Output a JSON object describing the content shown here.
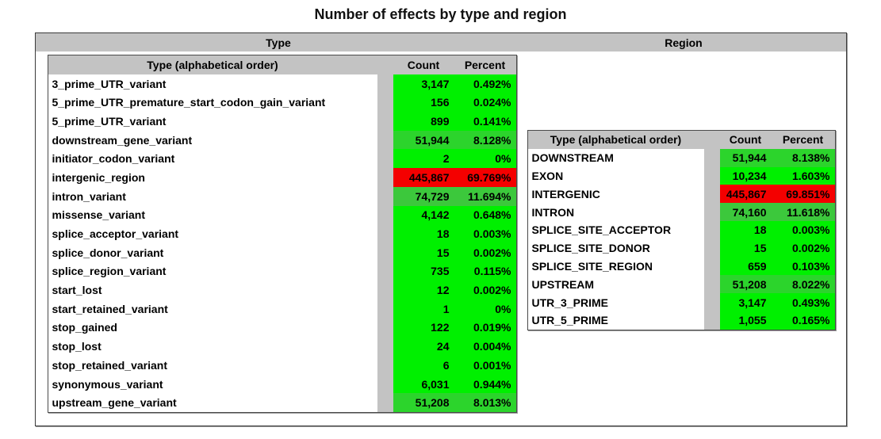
{
  "title": "Number of effects by type and region",
  "colors": {
    "header_gray": "#c3c3c3",
    "bright_green": "#00f000",
    "mid_green": "#2cd42c",
    "deep_green": "#3cc83c",
    "red": "#f40000"
  },
  "panels": {
    "type": {
      "label": "Type",
      "table": {
        "headers": [
          "Type (alphabetical order)",
          "Count",
          "Percent"
        ],
        "rows": [
          {
            "name": "3_prime_UTR_variant",
            "count": "3,147",
            "percent": "0.492%",
            "color": "#00f000"
          },
          {
            "name": "5_prime_UTR_premature_start_codon_gain_variant",
            "count": "156",
            "percent": "0.024%",
            "color": "#00f000"
          },
          {
            "name": "5_prime_UTR_variant",
            "count": "899",
            "percent": "0.141%",
            "color": "#00f000"
          },
          {
            "name": "downstream_gene_variant",
            "count": "51,944",
            "percent": "8.128%",
            "color": "#2cd42c"
          },
          {
            "name": "initiator_codon_variant",
            "count": "2",
            "percent": "0%",
            "color": "#00f000"
          },
          {
            "name": "intergenic_region",
            "count": "445,867",
            "percent": "69.769%",
            "color": "#f40000"
          },
          {
            "name": "intron_variant",
            "count": "74,729",
            "percent": "11.694%",
            "color": "#3cc83c"
          },
          {
            "name": "missense_variant",
            "count": "4,142",
            "percent": "0.648%",
            "color": "#00f000"
          },
          {
            "name": "splice_acceptor_variant",
            "count": "18",
            "percent": "0.003%",
            "color": "#00f000"
          },
          {
            "name": "splice_donor_variant",
            "count": "15",
            "percent": "0.002%",
            "color": "#00f000"
          },
          {
            "name": "splice_region_variant",
            "count": "735",
            "percent": "0.115%",
            "color": "#00f000"
          },
          {
            "name": "start_lost",
            "count": "12",
            "percent": "0.002%",
            "color": "#00f000"
          },
          {
            "name": "start_retained_variant",
            "count": "1",
            "percent": "0%",
            "color": "#00f000"
          },
          {
            "name": "stop_gained",
            "count": "122",
            "percent": "0.019%",
            "color": "#00f000"
          },
          {
            "name": "stop_lost",
            "count": "24",
            "percent": "0.004%",
            "color": "#00f000"
          },
          {
            "name": "stop_retained_variant",
            "count": "6",
            "percent": "0.001%",
            "color": "#00f000"
          },
          {
            "name": "synonymous_variant",
            "count": "6,031",
            "percent": "0.944%",
            "color": "#00f000"
          },
          {
            "name": "upstream_gene_variant",
            "count": "51,208",
            "percent": "8.013%",
            "color": "#2cd42c"
          }
        ]
      }
    },
    "region": {
      "label": "Region",
      "table": {
        "headers": [
          "Type (alphabetical order)",
          "Count",
          "Percent"
        ],
        "rows": [
          {
            "name": "DOWNSTREAM",
            "count": "51,944",
            "percent": "8.138%",
            "color": "#2cd42c"
          },
          {
            "name": "EXON",
            "count": "10,234",
            "percent": "1.603%",
            "color": "#00f000"
          },
          {
            "name": "INTERGENIC",
            "count": "445,867",
            "percent": "69.851%",
            "color": "#f40000"
          },
          {
            "name": "INTRON",
            "count": "74,160",
            "percent": "11.618%",
            "color": "#3cc83c"
          },
          {
            "name": "SPLICE_SITE_ACCEPTOR",
            "count": "18",
            "percent": "0.003%",
            "color": "#00f000"
          },
          {
            "name": "SPLICE_SITE_DONOR",
            "count": "15",
            "percent": "0.002%",
            "color": "#00f000"
          },
          {
            "name": "SPLICE_SITE_REGION",
            "count": "659",
            "percent": "0.103%",
            "color": "#00f000"
          },
          {
            "name": "UPSTREAM",
            "count": "51,208",
            "percent": "8.022%",
            "color": "#2cd42c"
          },
          {
            "name": "UTR_3_PRIME",
            "count": "3,147",
            "percent": "0.493%",
            "color": "#00f000"
          },
          {
            "name": "UTR_5_PRIME",
            "count": "1,055",
            "percent": "0.165%",
            "color": "#00f000"
          }
        ]
      }
    }
  }
}
